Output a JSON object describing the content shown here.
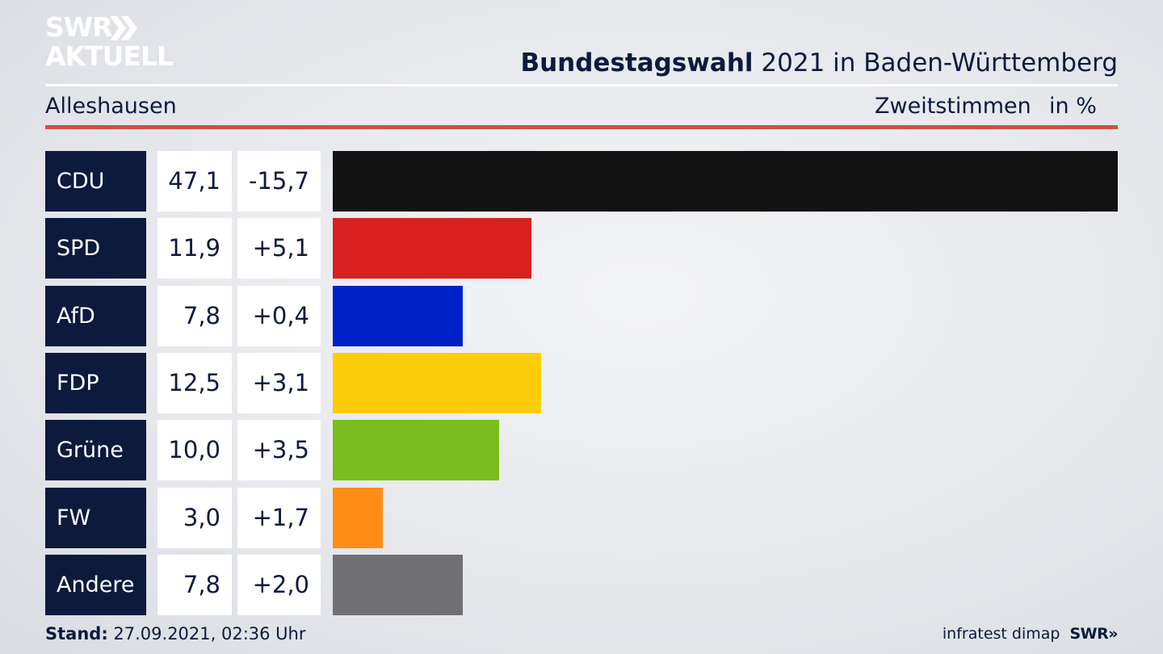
{
  "brand": {
    "logo_line1": "SWR",
    "logo_line2": "AKTUELL",
    "logo_arrows": "»"
  },
  "header": {
    "title_bold": "Bundestagswahl",
    "title_rest": " 2021 in Baden-Württemberg",
    "location": "Alleshausen",
    "measure": "Zweitstimmen",
    "unit": "in %"
  },
  "chart_data": {
    "type": "bar",
    "orientation": "horizontal",
    "title": "Bundestagswahl 2021 in Baden-Württemberg",
    "subtitle": "Alleshausen",
    "xlabel": "Zweitstimmen in %",
    "categories": [
      "CDU",
      "SPD",
      "AfD",
      "FDP",
      "Grüne",
      "FW",
      "Andere"
    ],
    "values": [
      47.1,
      11.9,
      7.8,
      12.5,
      10.0,
      3.0,
      7.8
    ],
    "value_labels": [
      "47,1",
      "11,9",
      "7,8",
      "12,5",
      "10,0",
      "3,0",
      "7,8"
    ],
    "change_labels": [
      "-15,7",
      "+5,1",
      "+0,4",
      "+3,1",
      "+3,5",
      "+1,7",
      "+2,0"
    ],
    "colors": [
      "#121212",
      "#d8201f",
      "#0021c8",
      "#fdcc0a",
      "#79be1e",
      "#ff8d18",
      "#717174"
    ],
    "xlim": [
      0,
      47.1
    ],
    "grid": false,
    "legend": "none"
  },
  "footer": {
    "stand_label": "Stand:",
    "stand_value": " 27.09.2021, 02:36 Uhr",
    "source": "infratest dimap",
    "brand": "SWR»"
  }
}
